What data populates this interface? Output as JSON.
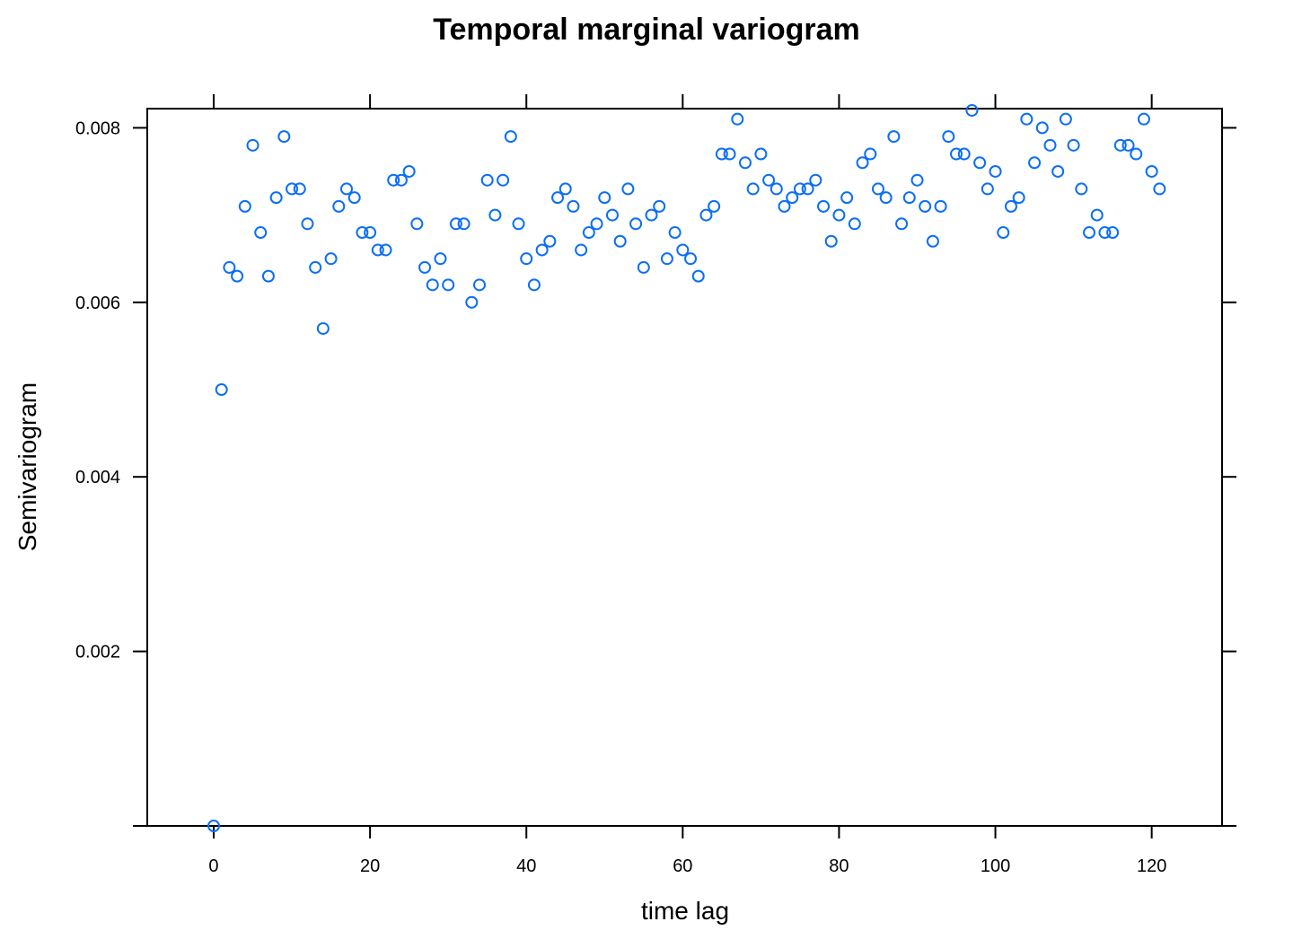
{
  "chart_data": {
    "type": "scatter",
    "title": "Temporal marginal variogram",
    "xlabel": "time lag",
    "ylabel": "Semivariogram",
    "xlim": [
      -8.5,
      129
    ],
    "ylim": [
      0,
      0.00822
    ],
    "xticks": [
      0,
      20,
      40,
      60,
      80,
      100,
      120
    ],
    "xtick_labels": [
      "0",
      "20",
      "40",
      "60",
      "80",
      "100",
      "120"
    ],
    "yticks": [
      0.002,
      0.004,
      0.006,
      0.008
    ],
    "ytick_labels": [
      "0.002",
      "0.004",
      "0.006",
      "0.008"
    ],
    "grid": false,
    "marker": "open-circle",
    "point_color": "#0b6ef7",
    "series": [
      {
        "x": [
          0,
          1,
          2,
          3,
          4,
          5,
          6,
          7,
          8,
          9,
          10,
          11,
          12,
          13,
          14,
          15,
          16,
          17,
          18,
          19,
          20,
          21,
          22,
          23,
          24,
          25,
          26,
          27,
          28,
          29,
          30,
          31,
          32,
          33,
          34,
          35,
          36,
          37,
          38,
          39,
          40,
          41,
          42,
          43,
          44,
          45,
          46,
          47,
          48,
          49,
          50,
          51,
          52,
          53,
          54,
          55,
          56,
          57,
          58,
          59,
          60,
          61,
          62,
          63,
          64,
          65,
          66,
          67,
          68,
          69,
          70,
          71,
          72,
          73,
          74,
          75,
          76,
          77,
          78,
          79,
          80,
          81,
          82,
          83,
          84,
          85,
          86,
          87,
          88,
          89,
          90,
          91,
          92,
          93,
          94,
          95,
          96,
          97,
          98,
          99,
          100,
          101,
          102,
          103,
          104,
          105,
          106,
          107,
          108,
          109,
          110,
          111,
          112,
          113,
          114,
          115,
          116,
          117,
          118,
          119,
          120,
          121
        ],
        "y": [
          0.0,
          0.005,
          0.0064,
          0.0063,
          0.0071,
          0.0078,
          0.0068,
          0.0063,
          0.0072,
          0.0079,
          0.0073,
          0.0073,
          0.0069,
          0.0064,
          0.0057,
          0.0065,
          0.0071,
          0.0073,
          0.0072,
          0.0068,
          0.0068,
          0.0066,
          0.0066,
          0.0074,
          0.0074,
          0.0075,
          0.0069,
          0.0064,
          0.0062,
          0.0065,
          0.0062,
          0.0069,
          0.0069,
          0.006,
          0.0062,
          0.0074,
          0.007,
          0.0074,
          0.0079,
          0.0069,
          0.0065,
          0.0062,
          0.0066,
          0.0067,
          0.0072,
          0.0073,
          0.0071,
          0.0066,
          0.0068,
          0.0069,
          0.0072,
          0.007,
          0.0067,
          0.0073,
          0.0069,
          0.0064,
          0.007,
          0.0071,
          0.0065,
          0.0068,
          0.0066,
          0.0065,
          0.0063,
          0.007,
          0.0071,
          0.0077,
          0.0077,
          0.0081,
          0.0076,
          0.0073,
          0.0077,
          0.0074,
          0.0073,
          0.0071,
          0.0072,
          0.0073,
          0.0073,
          0.0074,
          0.0071,
          0.0067,
          0.007,
          0.0072,
          0.0069,
          0.0076,
          0.0077,
          0.0073,
          0.0072,
          0.0079,
          0.0069,
          0.0072,
          0.0074,
          0.0071,
          0.0067,
          0.0071,
          0.0079,
          0.0077,
          0.0077,
          0.0082,
          0.0076,
          0.0073,
          0.0075,
          0.0068,
          0.0071,
          0.0072,
          0.0081,
          0.0076,
          0.008,
          0.0078,
          0.0075,
          0.0081,
          0.0078,
          0.0073,
          0.0068,
          0.007,
          0.0068,
          0.0068,
          0.0078,
          0.0078,
          0.0077,
          0.0081,
          0.0075,
          0.0073
        ]
      }
    ]
  }
}
